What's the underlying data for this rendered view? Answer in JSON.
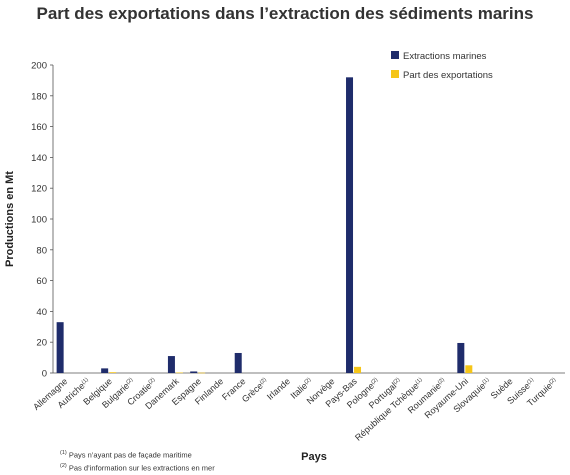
{
  "chart_data": {
    "type": "bar",
    "title": "Part des exportations dans l’extraction des sédiments marins",
    "xlabel": "Pays",
    "ylabel": "Productions en Mt",
    "ylim": [
      0,
      200
    ],
    "yticks": [
      0,
      20,
      40,
      60,
      80,
      100,
      120,
      140,
      160,
      180,
      200
    ],
    "grid": false,
    "legend_position": "top-right",
    "categories": [
      {
        "name": "Allemagne",
        "note": ""
      },
      {
        "name": "Autriche",
        "note": "(1)"
      },
      {
        "name": "Belgique",
        "note": ""
      },
      {
        "name": "Bulgarie",
        "note": "(2)"
      },
      {
        "name": "Croatie",
        "note": "(2)"
      },
      {
        "name": "Danemark",
        "note": ""
      },
      {
        "name": "Espagne",
        "note": ""
      },
      {
        "name": "Finlande",
        "note": ""
      },
      {
        "name": "France",
        "note": ""
      },
      {
        "name": "Grèce",
        "note": "(2)"
      },
      {
        "name": "Irlande",
        "note": ""
      },
      {
        "name": "Italie",
        "note": "(2)"
      },
      {
        "name": "Norvège",
        "note": ""
      },
      {
        "name": "Pays-Bas",
        "note": ""
      },
      {
        "name": "Pologne",
        "note": "(2)"
      },
      {
        "name": "Portugal",
        "note": "(2)"
      },
      {
        "name": "République Tchèque",
        "note": "(1)"
      },
      {
        "name": "Roumanie",
        "note": "(2)"
      },
      {
        "name": "Royaume-Uni",
        "note": ""
      },
      {
        "name": "Slovaquie",
        "note": "(1)"
      },
      {
        "name": "Suède",
        "note": ""
      },
      {
        "name": "Suisse",
        "note": "(1)"
      },
      {
        "name": "Turquie",
        "note": "(2)"
      }
    ],
    "series": [
      {
        "name": "Extractions marines",
        "color": "#1f2c6b",
        "values": [
          33,
          0,
          3,
          0,
          0,
          11,
          1,
          0,
          13,
          0,
          0,
          0,
          0,
          192,
          0,
          0,
          0,
          0,
          19.5,
          0,
          0,
          0,
          0
        ]
      },
      {
        "name": "Part des exportations",
        "color": "#f5c518",
        "values": [
          0,
          0,
          0.5,
          0,
          0,
          0.3,
          0.2,
          0,
          0,
          0,
          0,
          0,
          0,
          4,
          0,
          0,
          0,
          0,
          5,
          0,
          0,
          0,
          0
        ]
      }
    ]
  },
  "footnotes": [
    {
      "marker": "(1)",
      "text": "Pays n’ayant pas de façade maritime"
    },
    {
      "marker": "(2)",
      "text": "Pas d’information sur les extractions en mer"
    }
  ]
}
